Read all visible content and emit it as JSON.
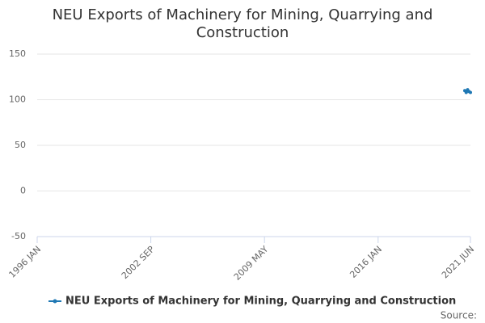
{
  "chart_data": {
    "type": "line",
    "title": "NEU Exports of Machinery for Mining, Quarrying and Construction",
    "x": [
      "2021 FEB",
      "2021 MAR",
      "2021 APR",
      "2021 MAY",
      "2021 JUN"
    ],
    "series": [
      {
        "name": "NEU Exports of Machinery for Mining, Quarrying and Construction",
        "color": "#1f78b4",
        "values": [
          110,
          108,
          111,
          109,
          108
        ]
      }
    ],
    "xlim": [
      "1996 JAN",
      "2021 JUN"
    ],
    "xticks": [
      "1996 JAN",
      "2002 SEP",
      "2009 MAY",
      "2016 JAN",
      "2021 JUN"
    ],
    "ylim": [
      -50,
      150
    ],
    "yticks": [
      -50,
      0,
      50,
      100,
      150
    ],
    "grid": true,
    "legend": "bottom",
    "source_label": "Source:"
  }
}
